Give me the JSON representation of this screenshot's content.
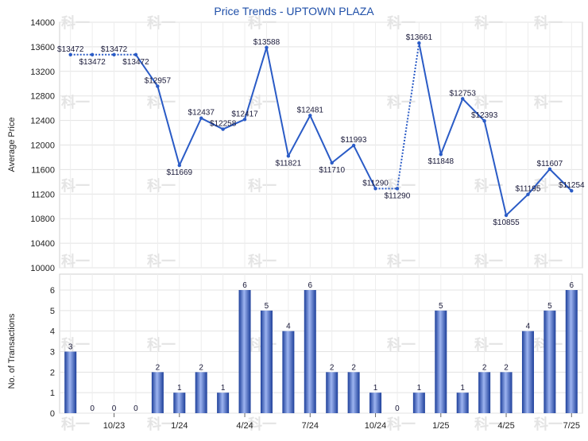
{
  "chart_data": [
    {
      "type": "line",
      "title": "Price Trends - UPTOWN PLAZA",
      "ylabel": "Average Price",
      "ylim": [
        10000,
        14000
      ],
      "yticks": [
        10000,
        10400,
        10800,
        11200,
        11600,
        12000,
        12400,
        12800,
        13200,
        13600,
        14000
      ],
      "grid": true,
      "series": [
        {
          "values": [
            13472,
            13472,
            13472,
            13472,
            12957,
            11669,
            12437,
            12258,
            12417,
            13588,
            11821,
            12481,
            11710,
            11993,
            11290,
            11290,
            13661,
            11848,
            12753,
            12393,
            10855,
            11195,
            11607,
            11254
          ],
          "labels": [
            "$13472",
            "$13472",
            "$13472",
            "$13472",
            "$12957",
            "$11669",
            "$12437",
            "$12258",
            "$12417",
            "$13588",
            "$11821",
            "$12481",
            "$11710",
            "$11993",
            "$11290",
            "$11290",
            "$13661",
            "$11848",
            "$12753",
            "$12393",
            "$10855",
            "$11195",
            "$11607",
            "$11254"
          ],
          "imputed": [
            false,
            true,
            true,
            false,
            false,
            false,
            false,
            false,
            false,
            false,
            false,
            false,
            false,
            false,
            false,
            true,
            false,
            false,
            false,
            false,
            false,
            false,
            false,
            false
          ],
          "color": "#2a5bc6"
        }
      ]
    },
    {
      "type": "bar",
      "ylabel": "No. of Transactions",
      "ylim": [
        0,
        6
      ],
      "yticks": [
        0,
        1,
        2,
        3,
        4,
        5,
        6
      ],
      "xtick_labels": [
        "10/23",
        "1/24",
        "4/24",
        "7/24",
        "10/24",
        "1/25",
        "4/25",
        "7/25"
      ],
      "xtick_index": [
        2,
        5,
        8,
        11,
        14,
        17,
        20,
        23
      ],
      "values": [
        3,
        0,
        0,
        0,
        2,
        1,
        2,
        1,
        6,
        5,
        4,
        6,
        2,
        2,
        1,
        0,
        1,
        5,
        1,
        2,
        2,
        4,
        5,
        6
      ],
      "grid": true,
      "color": "#2a5bc6"
    }
  ],
  "watermark": "科一"
}
